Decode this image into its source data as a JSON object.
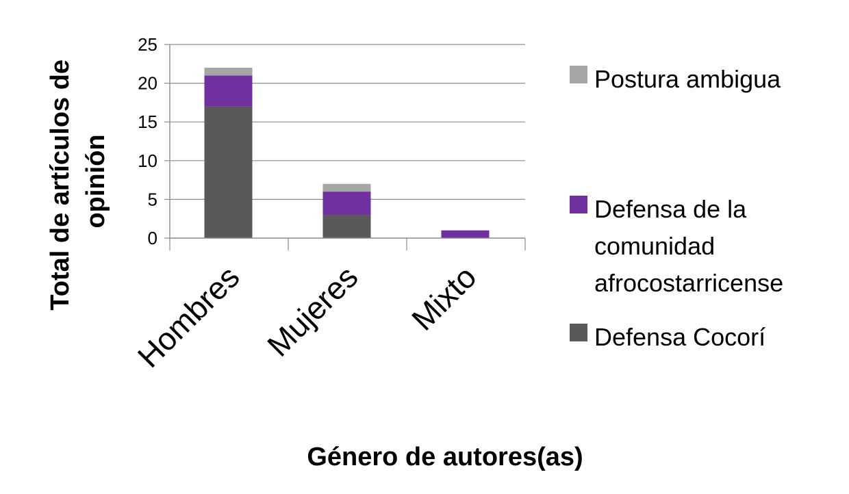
{
  "chart_data": {
    "type": "bar",
    "stacked": true,
    "categories": [
      "Hombres",
      "Mujeres",
      "Mixto"
    ],
    "series": [
      {
        "name": "Defensa Cocorí",
        "values": [
          17,
          3,
          0
        ],
        "color": "#595959"
      },
      {
        "name": "Defensa de la comunidad afrocostarricense",
        "values": [
          4,
          3,
          1
        ],
        "color": "#7030a0"
      },
      {
        "name": "Postura ambigua",
        "values": [
          1,
          1,
          0
        ],
        "color": "#a6a6a6"
      }
    ],
    "legend": {
      "placement": "right",
      "items": [
        {
          "lines": [
            "Postura ambigua"
          ],
          "color": "#a6a6a6"
        },
        {
          "lines": [
            "Defensa de la",
            "comunidad",
            "afrocostarricense"
          ],
          "color": "#7030a0"
        },
        {
          "lines": [
            "Defensa Cocorí"
          ],
          "color": "#595959"
        }
      ]
    },
    "xlabel": "Género de autores(as)",
    "ylabel_lines": [
      "Total de artículos de",
      "opinión"
    ],
    "ylim": [
      0,
      25
    ],
    "yticks": [
      "0",
      "5",
      "10",
      "15",
      "20",
      "25"
    ],
    "grid": true
  }
}
